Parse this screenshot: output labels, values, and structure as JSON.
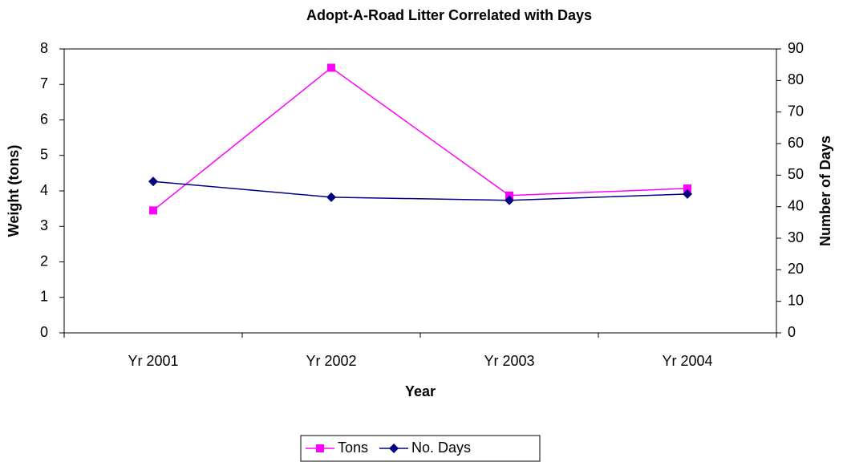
{
  "chart_data": {
    "type": "line",
    "title": "Adopt-A-Road Litter Correlated with Days",
    "x_label": "Year",
    "y_label": "Weight (tons)",
    "y2_label": "Number of Days",
    "categories": [
      "Yr 2001",
      "Yr 2002",
      "Yr 2003",
      "Yr 2004"
    ],
    "series": [
      {
        "name": "Tons",
        "color": "#ff00ff",
        "marker": "square",
        "values": [
          3.45,
          7.47,
          3.87,
          4.07
        ]
      },
      {
        "name": "No. Days",
        "color": "#000080",
        "marker": "diamond",
        "axis": "y2",
        "values": [
          48,
          43,
          42,
          44
        ]
      }
    ],
    "ylim": [
      0,
      8
    ],
    "yticks": [
      0,
      1,
      2,
      3,
      4,
      5,
      6,
      7,
      8
    ],
    "y2lim": [
      0,
      90
    ],
    "y2ticks": [
      0,
      10,
      20,
      30,
      40,
      50,
      60,
      70,
      80,
      90
    ],
    "legend": "bottom"
  }
}
